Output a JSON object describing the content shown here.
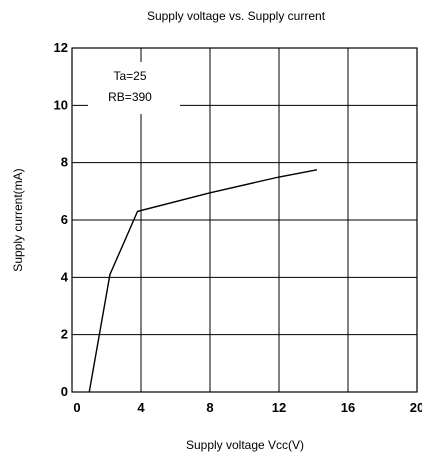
{
  "chart_data": {
    "type": "line",
    "title": "Supply voltage vs. Supply current",
    "xlabel": "Supply voltage Vcc(V)",
    "ylabel": "Supply current(mA)",
    "xlim": [
      0,
      20
    ],
    "ylim": [
      0,
      12
    ],
    "xticks": [
      "0",
      "4",
      "8",
      "12",
      "16",
      "20"
    ],
    "yticks": [
      "0",
      "2",
      "4",
      "6",
      "8",
      "10",
      "12"
    ],
    "grid": true,
    "annotations": [
      "Ta=25",
      "RB=390"
    ],
    "series": [
      {
        "x": [
          1.0,
          2.2,
          3.8,
          8.0,
          12.0,
          14.2
        ],
        "y": [
          0.0,
          4.1,
          6.3,
          6.95,
          7.5,
          7.75
        ]
      }
    ]
  }
}
